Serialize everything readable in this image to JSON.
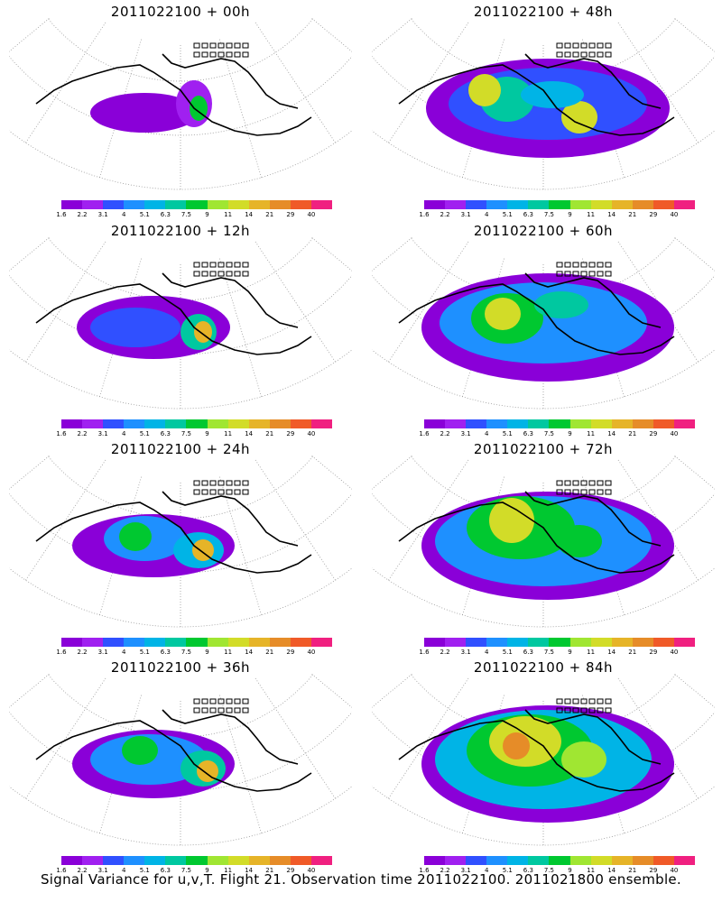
{
  "caption": "Signal Variance for u,v,T. Flight 21. Observation time 2011022100. 2011021800 ensemble.",
  "legend": {
    "colors": [
      "#8a00d8",
      "#a020f0",
      "#3050ff",
      "#1e90ff",
      "#00b4e6",
      "#00c8a0",
      "#00c830",
      "#a0e632",
      "#d2dc28",
      "#e6b428",
      "#e68c28",
      "#f05a28",
      "#f02080"
    ],
    "labels": [
      "1.6",
      "2.2",
      "3.1",
      "4",
      "5.1",
      "6.3",
      "7.5",
      "9",
      "11",
      "14",
      "21",
      "29",
      "40"
    ]
  },
  "chart_data": [
    {
      "type": "heatmap",
      "title": "2011022100 + 00h",
      "legend_levels": [
        "1.6",
        "2.2",
        "3.1",
        "4",
        "5.1",
        "6.3",
        "7.5",
        "9",
        "11",
        "14",
        "21",
        "29",
        "40"
      ]
    },
    {
      "type": "heatmap",
      "title": "2011022100 + 48h",
      "legend_levels": [
        "1.6",
        "2.2",
        "3.1",
        "4",
        "5.1",
        "6.3",
        "7.5",
        "9",
        "11",
        "14",
        "21",
        "29",
        "40"
      ]
    },
    {
      "type": "heatmap",
      "title": "2011022100 + 12h",
      "legend_levels": [
        "1.6",
        "2.2",
        "3.1",
        "4",
        "5.1",
        "6.3",
        "7.5",
        "9",
        "11",
        "14",
        "21",
        "29",
        "40"
      ]
    },
    {
      "type": "heatmap",
      "title": "2011022100 + 60h",
      "legend_levels": [
        "1.6",
        "2.2",
        "3.1",
        "4",
        "5.1",
        "6.3",
        "7.5",
        "9",
        "11",
        "14",
        "21",
        "29",
        "40"
      ]
    },
    {
      "type": "heatmap",
      "title": "2011022100 + 24h",
      "legend_levels": [
        "1.6",
        "2.2",
        "3.1",
        "4",
        "5.1",
        "6.3",
        "7.5",
        "9",
        "11",
        "14",
        "21",
        "29",
        "40"
      ]
    },
    {
      "type": "heatmap",
      "title": "2011022100 + 72h",
      "legend_levels": [
        "1.6",
        "2.2",
        "3.1",
        "4",
        "5.1",
        "6.3",
        "7.5",
        "9",
        "11",
        "14",
        "21",
        "29",
        "40"
      ]
    },
    {
      "type": "heatmap",
      "title": "2011022100 + 36h",
      "legend_levels": [
        "1.6",
        "2.2",
        "3.1",
        "4",
        "5.1",
        "6.3",
        "7.5",
        "9",
        "11",
        "14",
        "21",
        "29",
        "40"
      ]
    },
    {
      "type": "heatmap",
      "title": "2011022100 + 84h",
      "legend_levels": [
        "1.6",
        "2.2",
        "3.1",
        "4",
        "5.1",
        "6.3",
        "7.5",
        "9",
        "11",
        "14",
        "21",
        "29",
        "40"
      ]
    }
  ],
  "panels": [
    {
      "title": "2011022100 + 00h"
    },
    {
      "title": "2011022100 + 48h"
    },
    {
      "title": "2011022100 + 12h"
    },
    {
      "title": "2011022100 + 60h"
    },
    {
      "title": "2011022100 + 24h"
    },
    {
      "title": "2011022100 + 72h"
    },
    {
      "title": "2011022100 + 36h"
    },
    {
      "title": "2011022100 + 84h"
    }
  ]
}
